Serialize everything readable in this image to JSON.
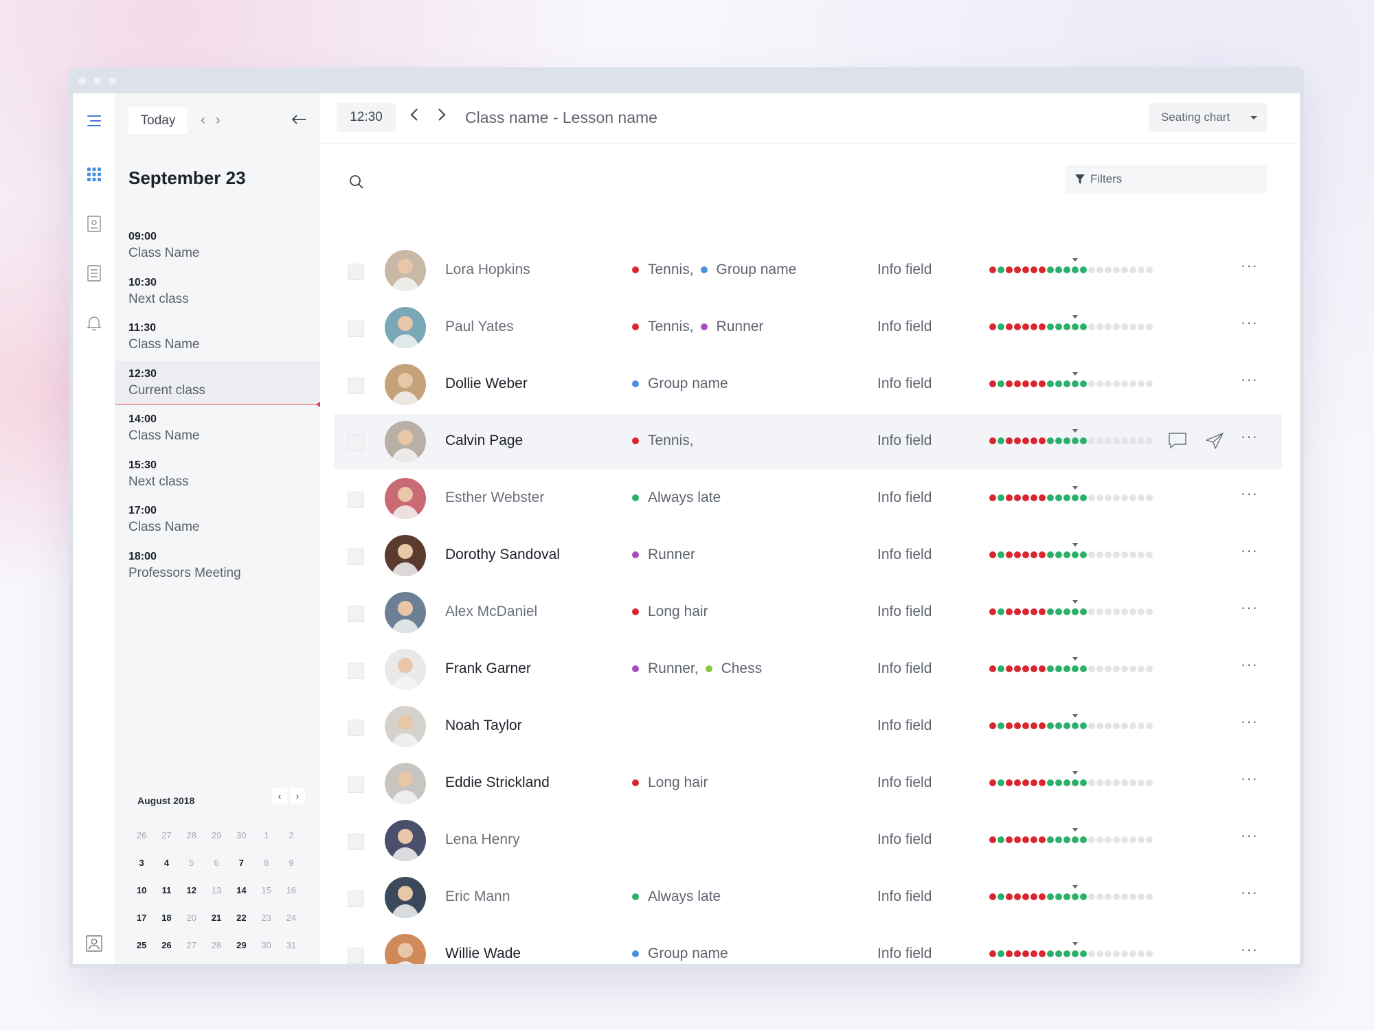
{
  "sidebar": {
    "icons": [
      "menu-icon",
      "grid-icon",
      "badge-icon",
      "list-icon",
      "bell-icon",
      "user-icon"
    ]
  },
  "schedule": {
    "today_label": "Today",
    "date_title": "September 23",
    "items": [
      {
        "time": "09:00",
        "name": "Class Name"
      },
      {
        "time": "10:30",
        "name": "Next class"
      },
      {
        "time": "11:30",
        "name": "Class Name"
      },
      {
        "time": "12:30",
        "name": "Current class"
      },
      {
        "time": "14:00",
        "name": "Class Name"
      },
      {
        "time": "15:30",
        "name": "Next class"
      },
      {
        "time": "17:00",
        "name": "Class Name"
      },
      {
        "time": "18:00",
        "name": "Professors Meeting"
      }
    ],
    "current_index": 3
  },
  "calendar": {
    "title": "August 2018",
    "weeks": [
      [
        "26",
        "27",
        "28",
        "29",
        "30",
        "1",
        "2"
      ],
      [
        "3",
        "4",
        "5",
        "6",
        "7",
        "8",
        "9"
      ],
      [
        "10",
        "11",
        "12",
        "13",
        "14",
        "15",
        "16"
      ],
      [
        "17",
        "18",
        "20",
        "21",
        "22",
        "23",
        "24"
      ],
      [
        "25",
        "26",
        "27",
        "28",
        "29",
        "30",
        "31"
      ]
    ],
    "bold_days": [
      "3",
      "4",
      "7",
      "10",
      "11",
      "12",
      "14",
      "17",
      "18",
      "21",
      "22",
      "25",
      "26",
      "29"
    ]
  },
  "topbar": {
    "time": "12:30",
    "title": "Class name - Lesson name",
    "view_select": "Seating chart"
  },
  "filters_label": "Filters",
  "colors": {
    "red": "#d9262f",
    "blue": "#4a8fe0",
    "purple": "#a64dbf",
    "green": "#2bb06a",
    "lime": "#8cc63f",
    "grey": "#e2e4e8"
  },
  "dots_pattern": [
    "red",
    "green",
    "red",
    "red",
    "red",
    "red",
    "red",
    "green",
    "green",
    "green",
    "green",
    "green",
    "grey",
    "grey",
    "grey",
    "grey",
    "grey",
    "grey",
    "grey",
    "grey"
  ],
  "students": [
    {
      "name": "Lora Hopkins",
      "dark": false,
      "tags": [
        {
          "label": "Tennis,",
          "color": "red"
        },
        {
          "label": "Group name",
          "color": "blue"
        }
      ],
      "info": "Info field"
    },
    {
      "name": "Paul Yates",
      "dark": false,
      "tags": [
        {
          "label": "Tennis,",
          "color": "red"
        },
        {
          "label": "Runner",
          "color": "purple"
        }
      ],
      "info": "Info field"
    },
    {
      "name": "Dollie Weber",
      "dark": true,
      "tags": [
        {
          "label": "Group name",
          "color": "blue"
        }
      ],
      "info": "Info field"
    },
    {
      "name": "Calvin Page",
      "dark": true,
      "tags": [
        {
          "label": "Tennis,",
          "color": "red"
        }
      ],
      "info": "Info field"
    },
    {
      "name": "Esther Webster",
      "dark": false,
      "tags": [
        {
          "label": "Always late",
          "color": "green"
        }
      ],
      "info": "Info field"
    },
    {
      "name": "Dorothy Sandoval",
      "dark": true,
      "tags": [
        {
          "label": "Runner",
          "color": "purple"
        }
      ],
      "info": "Info field"
    },
    {
      "name": "Alex McDaniel",
      "dark": false,
      "tags": [
        {
          "label": "Long hair",
          "color": "red"
        }
      ],
      "info": "Info field"
    },
    {
      "name": "Frank Garner",
      "dark": true,
      "tags": [
        {
          "label": "Runner,",
          "color": "purple"
        },
        {
          "label": "Chess",
          "color": "lime"
        }
      ],
      "info": "Info field"
    },
    {
      "name": "Noah Taylor",
      "dark": true,
      "tags": [],
      "info": "Info field"
    },
    {
      "name": "Eddie Strickland",
      "dark": true,
      "tags": [
        {
          "label": "Long hair",
          "color": "red"
        }
      ],
      "info": "Info field"
    },
    {
      "name": "Lena Henry",
      "dark": false,
      "tags": [],
      "info": "Info field"
    },
    {
      "name": "Eric Mann",
      "dark": false,
      "tags": [
        {
          "label": "Always late",
          "color": "green"
        }
      ],
      "info": "Info field"
    },
    {
      "name": "Willie Wade",
      "dark": true,
      "tags": [
        {
          "label": "Group name",
          "color": "blue"
        }
      ],
      "info": "Info field"
    }
  ],
  "highlighted_row": 3
}
